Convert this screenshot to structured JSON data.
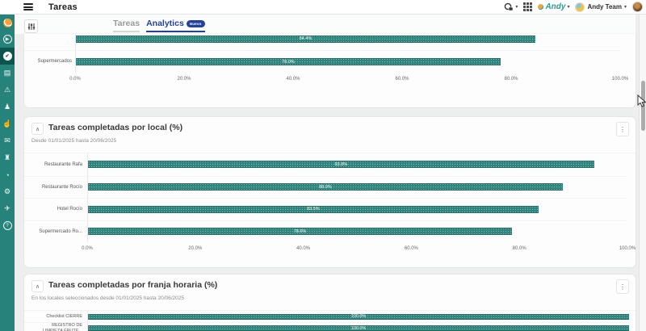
{
  "app": {
    "title": "Tareas"
  },
  "header": {
    "title": "Tareas",
    "brand": "Andy",
    "team_name": "Andy Team"
  },
  "toolbar": {
    "tabs": [
      {
        "label": "Tareas",
        "active": false
      },
      {
        "label": "Analytics",
        "active": true,
        "badge": "Nuevo"
      }
    ]
  },
  "sidebar": {
    "active_index": 2,
    "icons": [
      "play-circle",
      "tasks-check",
      "checklist",
      "alerts",
      "user-badge",
      "hand",
      "messages",
      "locations",
      "time",
      "settings",
      "send",
      "help"
    ]
  },
  "colors": {
    "sidebar_teal": "#26837c",
    "sidebar_active": "#0d544e",
    "bar_teal": "#2f867e",
    "tab_blue": "#24419b",
    "page_bg": "#edefee"
  },
  "chart_data": [
    {
      "type": "bar",
      "orientation": "horizontal",
      "title": "",
      "subtitle": "",
      "categories": [
        "",
        "Supermercados"
      ],
      "values": [
        84.4,
        78.0
      ],
      "bar_labels": [
        "84.4%",
        "78.0%"
      ],
      "xticks": [
        "0.0%",
        "20.0%",
        "40.0%",
        "60.0%",
        "80.0%",
        "100.0%"
      ],
      "xlim": [
        0,
        100
      ]
    },
    {
      "type": "bar",
      "orientation": "horizontal",
      "title": "Tareas completadas por local (%)",
      "subtitle": "Desde 01/01/2025 hasta 20/06/2025",
      "categories": [
        "Restaurante Rafa",
        "Restaurante Rocío",
        "Hotel Rocío",
        "Supermercado Ro..."
      ],
      "values": [
        93.8,
        88.0,
        83.5,
        78.6
      ],
      "bar_labels": [
        "93.8%",
        "88.0%",
        "83.5%",
        "78.6%"
      ],
      "xticks": [
        "0.0%",
        "20.0%",
        "40.0%",
        "60.0%",
        "80.0%",
        "100.0%"
      ],
      "xlim": [
        0,
        100
      ]
    },
    {
      "type": "bar",
      "orientation": "horizontal",
      "title": "Tareas completadas por franja horaria (%)",
      "subtitle": "En los locales seleccionados desde 01/01/2025 hasta 20/06/2025",
      "categories": [
        "Checklist CIERRE",
        "REGISTRO DE\nLIMPIEZA FRUTE..."
      ],
      "values": [
        100.0,
        100.0
      ],
      "bar_labels": [
        "100.0%",
        "100.0%"
      ],
      "xticks": [],
      "xlim": [
        0,
        100
      ]
    }
  ]
}
